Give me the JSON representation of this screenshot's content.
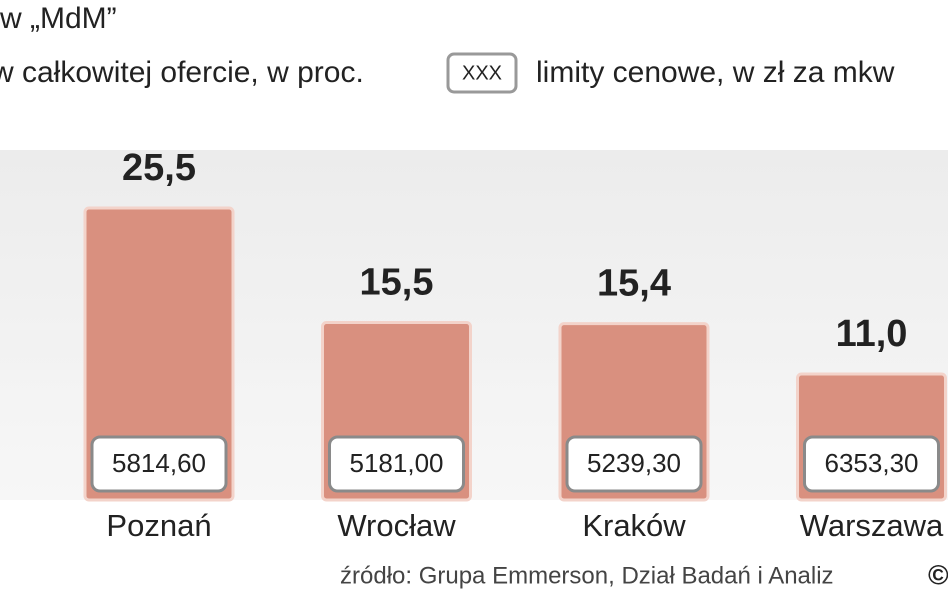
{
  "chart_data": {
    "type": "bar",
    "title": "w „MdM”",
    "subtitle": "w całkowitej ofercie, w proc.",
    "legend_box": "XXX",
    "legend_text": "limity cenowe, w zł za mkw",
    "categories": [
      "Poznań",
      "Wrocław",
      "Kraków",
      "Warszawa"
    ],
    "values": [
      25.5,
      15.5,
      15.4,
      11.0
    ],
    "value_labels": [
      "25,5",
      "15,5",
      "15,4",
      "11,0"
    ],
    "color": "#d9907f",
    "limits": {
      "values": [
        5814.6,
        5181.0,
        5239.3,
        6353.3
      ],
      "value_labels": [
        "5814,60",
        "5181,00",
        "5239,30",
        "6353,30"
      ]
    },
    "source": "źródło: Grupa Emmerson, Dział Badań i Analiz",
    "copyright": "©"
  }
}
